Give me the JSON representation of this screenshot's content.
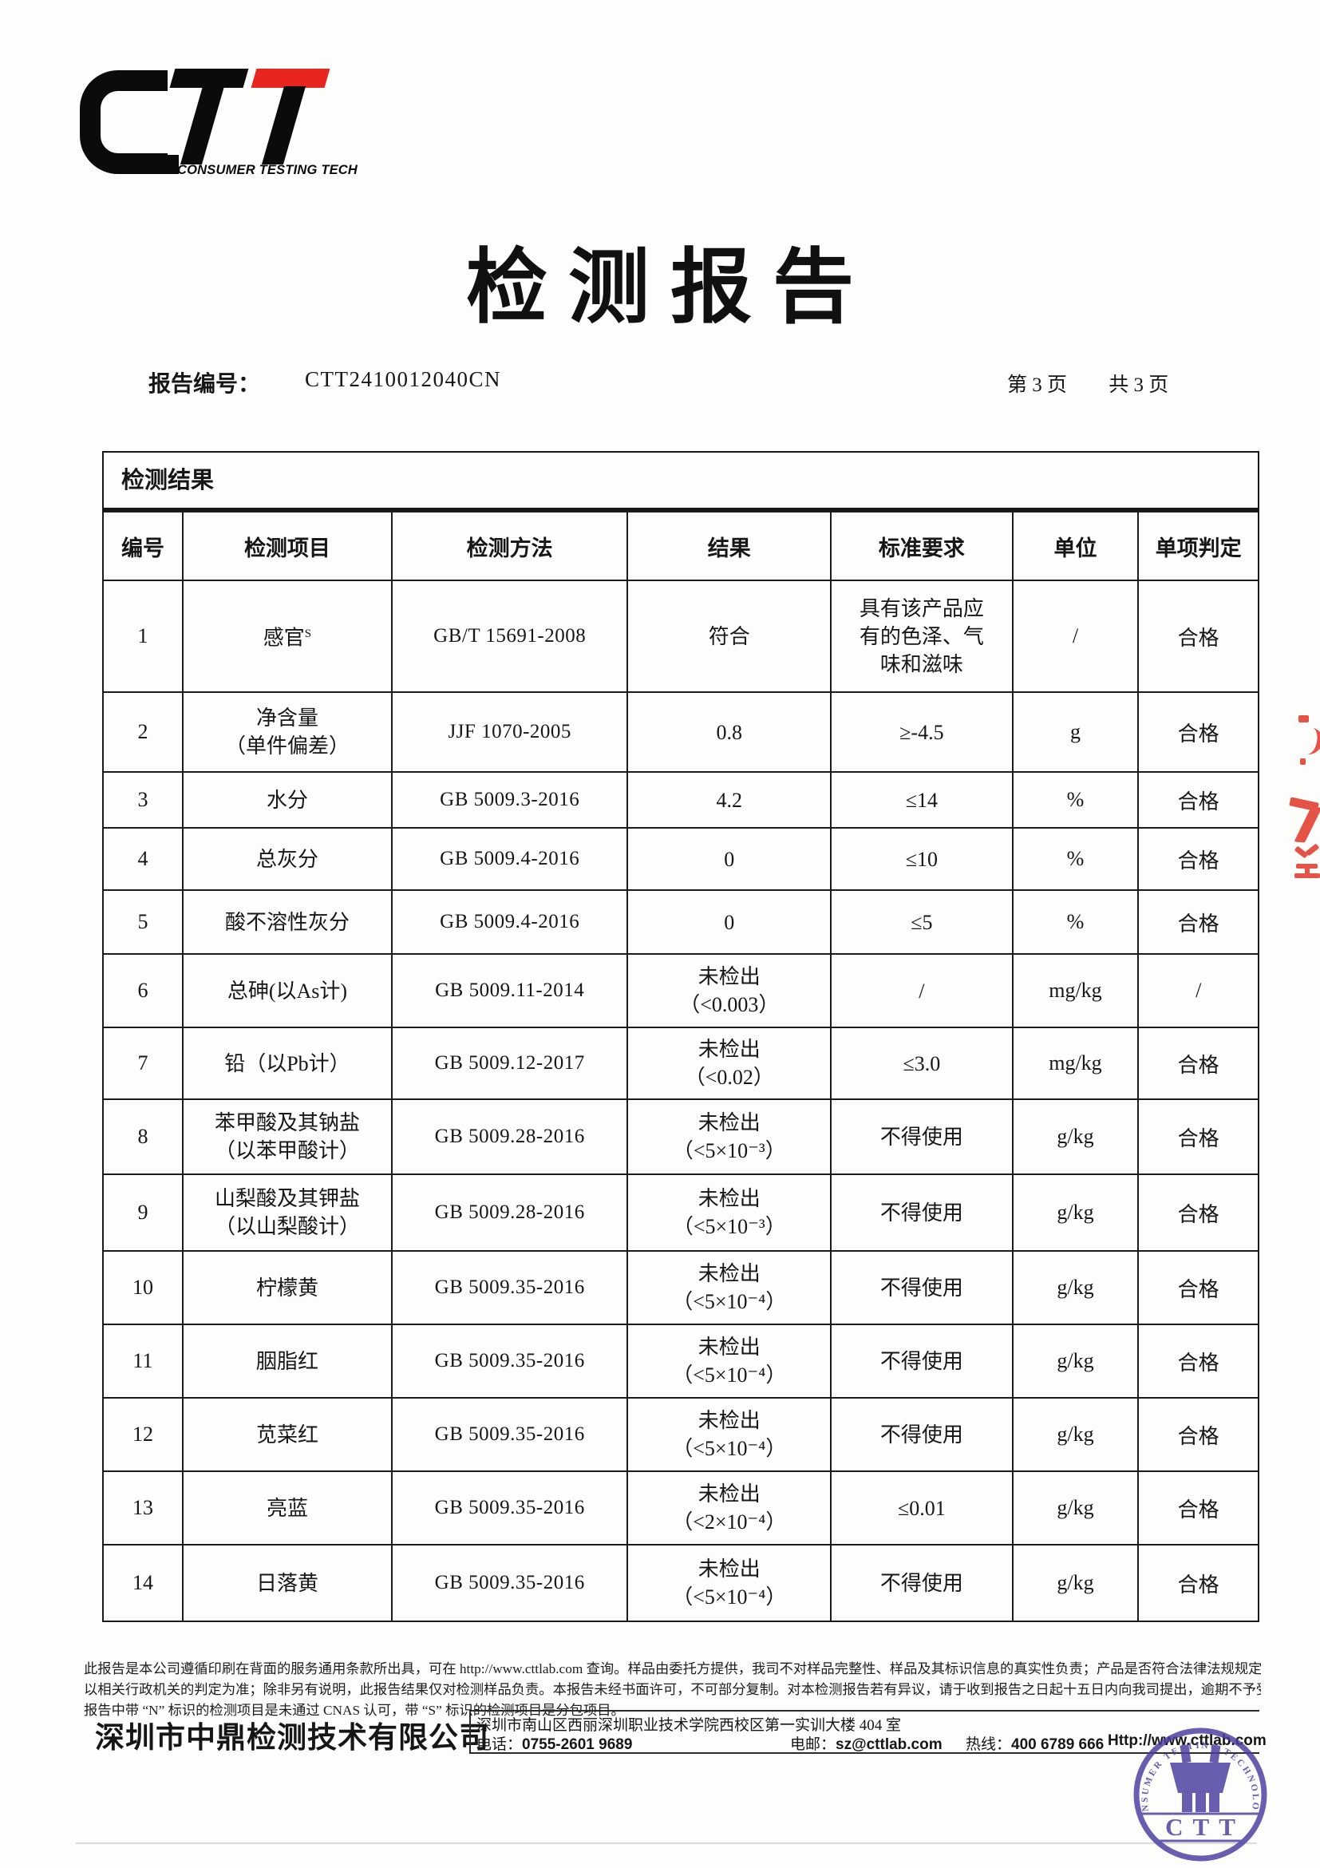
{
  "logo": {
    "letters": "CTT",
    "tagline": "CONSUMER TESTING TECH",
    "accent_color": "#e8251f"
  },
  "title": "检测报告",
  "report_header": {
    "label": "报告编号：",
    "number": "CTT2410012040CN",
    "page_current": "第 3 页",
    "page_total": "共 3 页"
  },
  "table": {
    "section_title": "检测结果",
    "columns": [
      "编号",
      "检测项目",
      "检测方法",
      "结果",
      "标准要求",
      "单位",
      "单项判定"
    ],
    "rows": [
      {
        "no": "1",
        "item": [
          "感官"
        ],
        "item_sup": "S",
        "method": "GB/T 15691-2008",
        "result": [
          "符合"
        ],
        "standard": [
          "具有该产品应",
          "有的色泽、气",
          "味和滋味"
        ],
        "unit": "/",
        "judgement": "合格"
      },
      {
        "no": "2",
        "item": [
          "净含量",
          "（单件偏差）"
        ],
        "method": "JJF 1070-2005",
        "result": [
          "0.8"
        ],
        "standard": [
          "≥-4.5"
        ],
        "unit": "g",
        "judgement": "合格"
      },
      {
        "no": "3",
        "item": [
          "水分"
        ],
        "method": "GB 5009.3-2016",
        "result": [
          "4.2"
        ],
        "standard": [
          "≤14"
        ],
        "unit": "%",
        "judgement": "合格"
      },
      {
        "no": "4",
        "item": [
          "总灰分"
        ],
        "method": "GB 5009.4-2016",
        "result": [
          "0"
        ],
        "standard": [
          "≤10"
        ],
        "unit": "%",
        "judgement": "合格"
      },
      {
        "no": "5",
        "item": [
          "酸不溶性灰分"
        ],
        "method": "GB 5009.4-2016",
        "result": [
          "0"
        ],
        "standard": [
          "≤5"
        ],
        "unit": "%",
        "judgement": "合格"
      },
      {
        "no": "6",
        "item": [
          "总砷(以As计)"
        ],
        "method": "GB 5009.11-2014",
        "result": [
          "未检出",
          "（<0.003）"
        ],
        "standard": [
          "/"
        ],
        "unit": "mg/kg",
        "judgement": "/"
      },
      {
        "no": "7",
        "item": [
          "铅（以Pb计）"
        ],
        "method": "GB 5009.12-2017",
        "result": [
          "未检出",
          "（<0.02）"
        ],
        "standard": [
          "≤3.0"
        ],
        "unit": "mg/kg",
        "judgement": "合格"
      },
      {
        "no": "8",
        "item": [
          "苯甲酸及其钠盐",
          "（以苯甲酸计）"
        ],
        "method": "GB 5009.28-2016",
        "result": [
          "未检出",
          "（<5×10⁻³）"
        ],
        "standard": [
          "不得使用"
        ],
        "unit": "g/kg",
        "judgement": "合格"
      },
      {
        "no": "9",
        "item": [
          "山梨酸及其钾盐",
          "（以山梨酸计）"
        ],
        "method": "GB 5009.28-2016",
        "result": [
          "未检出",
          "（<5×10⁻³）"
        ],
        "standard": [
          "不得使用"
        ],
        "unit": "g/kg",
        "judgement": "合格"
      },
      {
        "no": "10",
        "item": [
          "柠檬黄"
        ],
        "method": "GB 5009.35-2016",
        "result": [
          "未检出",
          "（<5×10⁻⁴）"
        ],
        "standard": [
          "不得使用"
        ],
        "unit": "g/kg",
        "judgement": "合格"
      },
      {
        "no": "11",
        "item": [
          "胭脂红"
        ],
        "method": "GB 5009.35-2016",
        "result": [
          "未检出",
          "（<5×10⁻⁴）"
        ],
        "standard": [
          "不得使用"
        ],
        "unit": "g/kg",
        "judgement": "合格"
      },
      {
        "no": "12",
        "item": [
          "苋菜红"
        ],
        "method": "GB 5009.35-2016",
        "result": [
          "未检出",
          "（<5×10⁻⁴）"
        ],
        "standard": [
          "不得使用"
        ],
        "unit": "g/kg",
        "judgement": "合格"
      },
      {
        "no": "13",
        "item": [
          "亮蓝"
        ],
        "method": "GB 5009.35-2016",
        "result": [
          "未检出",
          "（<2×10⁻⁴）"
        ],
        "standard": [
          "≤0.01"
        ],
        "unit": "g/kg",
        "judgement": "合格"
      },
      {
        "no": "14",
        "item": [
          "日落黄"
        ],
        "method": "GB 5009.35-2016",
        "result": [
          "未检出",
          "（<5×10⁻⁴）"
        ],
        "standard": [
          "不得使用"
        ],
        "unit": "g/kg",
        "judgement": "合格"
      }
    ]
  },
  "footer": {
    "disclaimer_lines": [
      "此报告是本公司遵循印刷在背面的服务通用条款所出具，可在 http://www.cttlab.com 查询。样品由委托方提供，我司不对样品完整性、样品及其标识信息的真实性负责；产品是否符合法律法规规定，",
      "以相关行政机关的判定为准；除非另有说明，此报告结果仅对检测样品负责。本报告未经书面许可，不可部分复制。对本检测报告若有异议，请于收到报告之日起十五日内向我司提出，逾期不予受理。",
      "报告中带 “N” 标识的检测项目是未通过 CNAS 认可，带 “S” 标识的检测项目是分包项目。"
    ],
    "company": "深圳市中鼎检测技术有限公司",
    "address": "深圳市南山区西丽深圳职业技术学院西校区第一实训大楼 404 室",
    "phone_label": "电话：",
    "phone": "0755-2601 9689",
    "email_label": "电邮：",
    "email": "sz@cttlab.com",
    "hotline_label": "热线：",
    "hotline": "400 6789 666",
    "website": "Http://www.cttlab.com"
  },
  "stamp": {
    "ring_text": "CONSUMER TESTING TECHNOLOGY",
    "center_text": "CTT",
    "color": "#4b3fa0"
  },
  "edge_marks": {
    "color": "#e23c2e"
  }
}
